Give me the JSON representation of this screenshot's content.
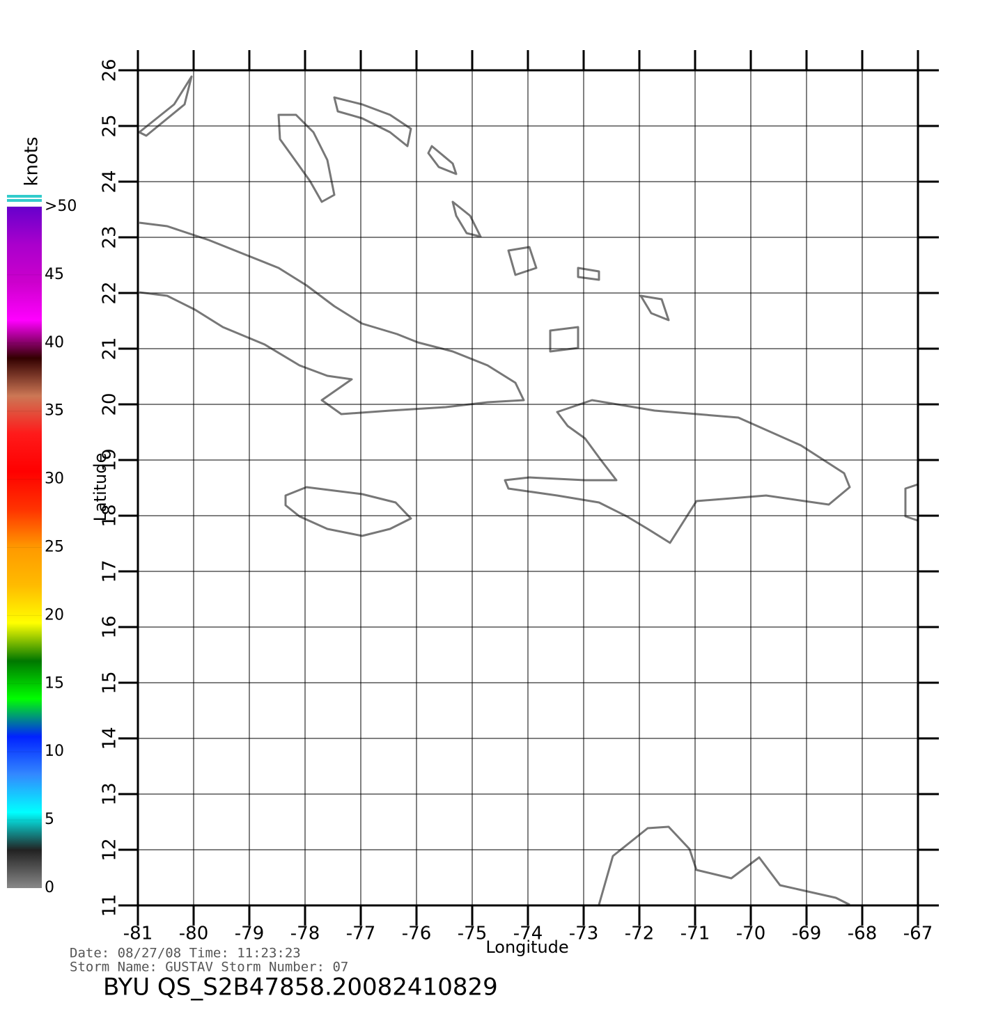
{
  "map": {
    "title": "BYU  QS_S2B47858.20082410829",
    "date_line": "Date: 08/27/08   Time: 11:23:23",
    "storm_line": "Storm  Name: GUSTAV   Storm  Number: 07",
    "x_label": "Longitude",
    "y_label": "Latitude",
    "xlim": [
      -81,
      -67
    ],
    "ylim": [
      11,
      26
    ],
    "xticks": [
      -81,
      -80,
      -79,
      -78,
      -77,
      -76,
      -75,
      -74,
      -73,
      -72,
      -71,
      -70,
      -69,
      -68,
      -67
    ],
    "yticks": [
      11,
      12,
      13,
      14,
      15,
      16,
      17,
      18,
      19,
      20,
      21,
      22,
      23,
      24,
      25,
      26
    ],
    "grid": true,
    "colorbar": {
      "label": "knots",
      "range": [
        0,
        50
      ],
      "ticks": [
        0,
        5,
        10,
        15,
        20,
        25,
        30,
        35,
        40,
        45,
        {
          "value": 50,
          "label": ">50"
        }
      ],
      "colors": [
        "#888888",
        "#222222",
        "#00ffff",
        "#3388ff",
        "#0022ff",
        "#00ff00",
        "#007700",
        "#ffff00",
        "#ffbb00",
        "#ff9900",
        "#ff3300",
        "#ff0000",
        "#ff1a1a",
        "#cc7755",
        "#330000",
        "#ff00ff",
        "#cc00cc",
        "#aa00cc",
        "#6600cc"
      ]
    }
  }
}
